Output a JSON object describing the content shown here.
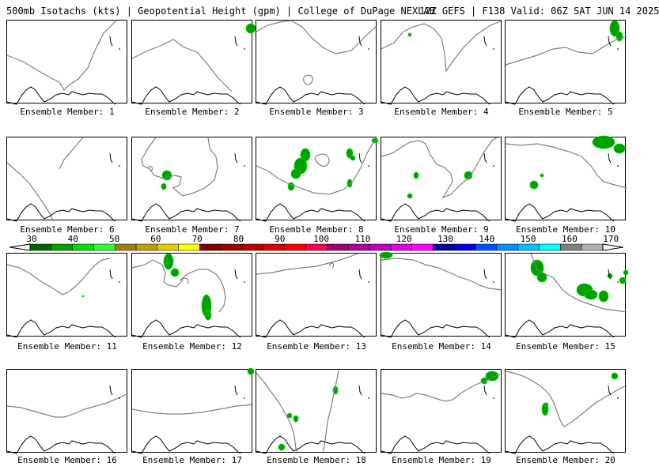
{
  "header": {
    "product": "500mb Isotachs (kts) | Geopotential Height (gpm) | College of DuPage NEXLAB",
    "run": "12Z GEFS | F138 Valid: 06Z SAT JUN 14 2025"
  },
  "panel_caption_prefix": "Ensemble Member: ",
  "members": [
    {
      "id": 1,
      "caption": "Ensemble Member: 1"
    },
    {
      "id": 2,
      "caption": "Ensemble Member: 2"
    },
    {
      "id": 3,
      "caption": "Ensemble Member: 3"
    },
    {
      "id": 4,
      "caption": "Ensemble Member: 4"
    },
    {
      "id": 5,
      "caption": "Ensemble Member: 5"
    },
    {
      "id": 6,
      "caption": "Ensemble Member: 6"
    },
    {
      "id": 7,
      "caption": "Ensemble Member: 7"
    },
    {
      "id": 8,
      "caption": "Ensemble Member: 8"
    },
    {
      "id": 9,
      "caption": "Ensemble Member: 9"
    },
    {
      "id": 10,
      "caption": "Ensemble Member: 10"
    },
    {
      "id": 11,
      "caption": "Ensemble Member: 11"
    },
    {
      "id": 12,
      "caption": "Ensemble Member: 12"
    },
    {
      "id": 13,
      "caption": "Ensemble Member: 13"
    },
    {
      "id": 14,
      "caption": "Ensemble Member: 14"
    },
    {
      "id": 15,
      "caption": "Ensemble Member: 15"
    },
    {
      "id": 16,
      "caption": "Ensemble Member: 16"
    },
    {
      "id": 17,
      "caption": "Ensemble Member: 17"
    },
    {
      "id": 18,
      "caption": "Ensemble Member: 18"
    },
    {
      "id": 19,
      "caption": "Ensemble Member: 19"
    },
    {
      "id": 20,
      "caption": "Ensemble Member: 20"
    }
  ],
  "colorbar": {
    "labels": [
      "30",
      "40",
      "50",
      "60",
      "70",
      "80",
      "90",
      "100",
      "110",
      "120",
      "130",
      "140",
      "150",
      "160",
      "170"
    ],
    "colors": [
      "#006400",
      "#00a000",
      "#00e000",
      "#30ff30",
      "#a08010",
      "#c0a000",
      "#e0d000",
      "#ffff00",
      "#800000",
      "#a00000",
      "#c00000",
      "#e00000",
      "#ff0000",
      "#ff0050",
      "#a00070",
      "#b000a0",
      "#c000c0",
      "#e000e0",
      "#ff00ff",
      "#0000a0",
      "#0000e0",
      "#0050ff",
      "#0090ff",
      "#00c0ff",
      "#00ffff",
      "#808080",
      "#b0b0b0"
    ]
  },
  "colors": {
    "coastline": "#000000",
    "height_contour": "#808080",
    "isotach_fill": "#00a000"
  }
}
